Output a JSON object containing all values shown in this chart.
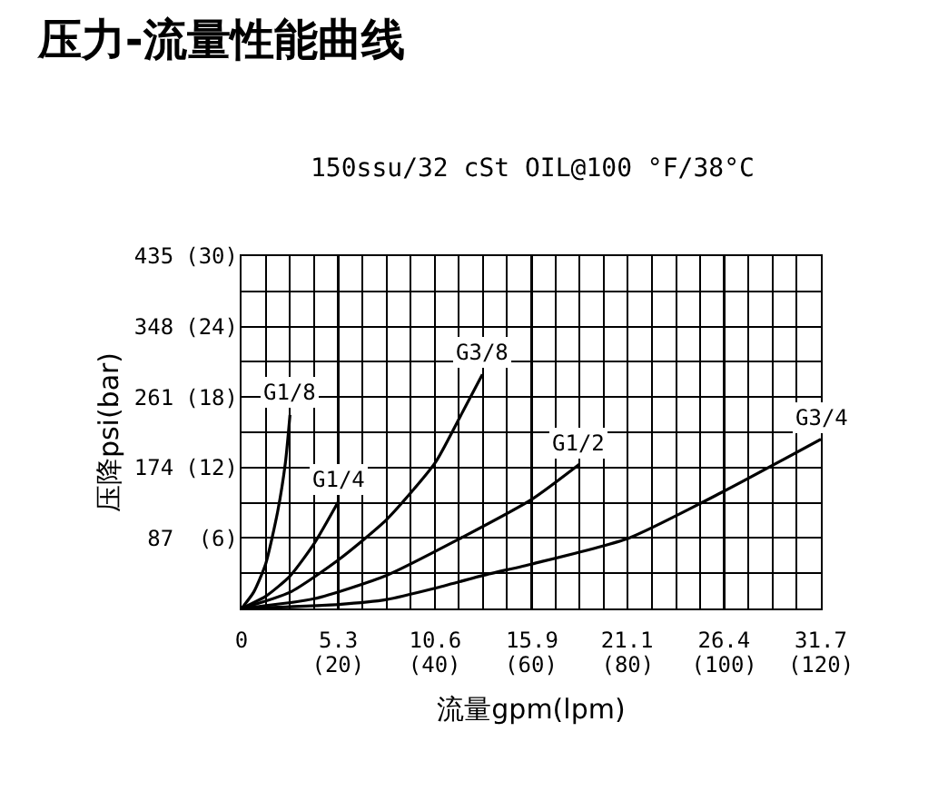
{
  "chart_data": {
    "type": "line",
    "title": "压力-流量性能曲线",
    "subtitle": "150ssu/32 cSt OIL@100 °F/38°C",
    "xlabel": "流量gpm(lpm)",
    "ylabel": "压降psi(bar)",
    "xlim": [
      0,
      31.7
    ],
    "ylim": [
      0,
      435
    ],
    "xticks": [
      0,
      5.3,
      10.6,
      15.9,
      21.1,
      26.4,
      31.7
    ],
    "x2lim": [
      0,
      120
    ],
    "x2ticks": [
      {
        "value": 20,
        "label": "(20)"
      },
      {
        "value": 40,
        "label": "(40)"
      },
      {
        "value": 60,
        "label": "(60)"
      },
      {
        "value": 80,
        "label": "(80)"
      },
      {
        "value": 100,
        "label": "(100)"
      },
      {
        "value": 120,
        "label": "(120)"
      }
    ],
    "yticks": [
      87,
      174,
      261,
      348,
      435
    ],
    "y2lim": [
      0,
      30
    ],
    "y2ticks": [
      {
        "value": 6,
        "label": "(6)"
      },
      {
        "value": 12,
        "label": "(12)"
      },
      {
        "value": 18,
        "label": "(18)"
      },
      {
        "value": 24,
        "label": "(24)"
      },
      {
        "value": 30,
        "label": "(30)"
      }
    ],
    "grid": true,
    "legend": false,
    "marker": "none",
    "line_style": "solid",
    "series": [
      {
        "name": "G1/8",
        "color": "#000000",
        "x": [
          0,
          0.66,
          1.32,
          1.98,
          2.4,
          2.65
        ],
        "values": [
          0,
          20,
          55,
          120,
          180,
          239
        ]
      },
      {
        "name": "G1/4",
        "color": "#000000",
        "x": [
          0,
          1.32,
          2.65,
          3.97,
          5.3
        ],
        "values": [
          0,
          15,
          40,
          80,
          132
        ]
      },
      {
        "name": "G3/8",
        "color": "#000000",
        "x": [
          0,
          2.65,
          5.3,
          7.95,
          10.6,
          11.92,
          13.18
        ],
        "values": [
          0,
          20,
          60,
          110,
          180,
          235,
          289
        ]
      },
      {
        "name": "G1/2",
        "color": "#000000",
        "x": [
          0,
          3.97,
          7.95,
          11.92,
          15.9,
          18.48
        ],
        "values": [
          0,
          12,
          41,
          86,
          135,
          178
        ]
      },
      {
        "name": "G3/4",
        "color": "#000000",
        "x": [
          0,
          5.3,
          7.95,
          10.6,
          13.25,
          15.9,
          21.2,
          26.5,
          31.7
        ],
        "values": [
          0,
          5,
          11,
          25,
          41,
          55,
          87,
          146,
          209
        ]
      }
    ]
  }
}
